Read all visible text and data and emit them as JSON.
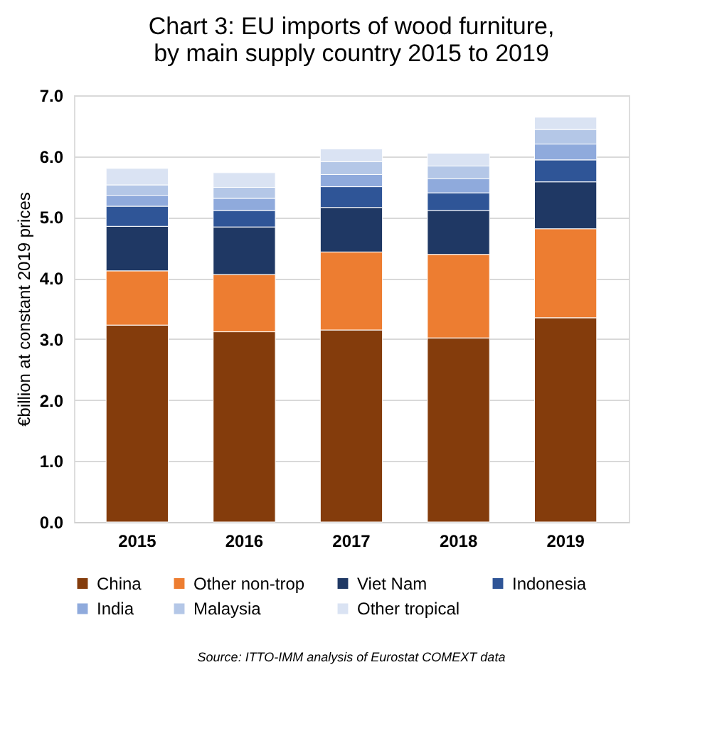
{
  "chart_data": {
    "type": "bar",
    "stacked": true,
    "title": "Chart 3: EU imports of wood furniture, by main supply country 2015 to 2019",
    "ylabel": "€billion at constant 2019 prices",
    "categories": [
      "2015",
      "2016",
      "2017",
      "2018",
      "2019"
    ],
    "series": [
      {
        "name": "China",
        "color": "#843c0c",
        "values": [
          3.23,
          3.12,
          3.15,
          3.02,
          3.35
        ]
      },
      {
        "name": "Other non-trop",
        "color": "#ed7d31",
        "values": [
          0.89,
          0.94,
          1.28,
          1.37,
          1.46
        ]
      },
      {
        "name": "Viet Nam",
        "color": "#1f3864",
        "values": [
          0.73,
          0.78,
          0.73,
          0.72,
          0.77
        ]
      },
      {
        "name": "Indonesia",
        "color": "#2f5597",
        "values": [
          0.33,
          0.27,
          0.34,
          0.29,
          0.36
        ]
      },
      {
        "name": "India",
        "color": "#8faadc",
        "values": [
          0.18,
          0.2,
          0.2,
          0.23,
          0.26
        ]
      },
      {
        "name": "Malaysia",
        "color": "#b4c7e7",
        "values": [
          0.17,
          0.18,
          0.21,
          0.21,
          0.24
        ]
      },
      {
        "name": "Other tropical",
        "color": "#dae3f3",
        "values": [
          0.27,
          0.24,
          0.21,
          0.21,
          0.2
        ]
      }
    ],
    "ylim": [
      0,
      7
    ],
    "yticks": [
      {
        "value": 0,
        "label": "0.0"
      },
      {
        "value": 1,
        "label": "1.0"
      },
      {
        "value": 2,
        "label": "2.0"
      },
      {
        "value": 3,
        "label": "3.0"
      },
      {
        "value": 4,
        "label": "4.0"
      },
      {
        "value": 5,
        "label": "5.0"
      },
      {
        "value": 6,
        "label": "6.0"
      },
      {
        "value": 7,
        "label": "7.0"
      }
    ],
    "grid": "y",
    "legend": "bottom",
    "annotations": [
      "Source: ITTO-IMM analysis of Eurostat COMEXT data"
    ]
  }
}
